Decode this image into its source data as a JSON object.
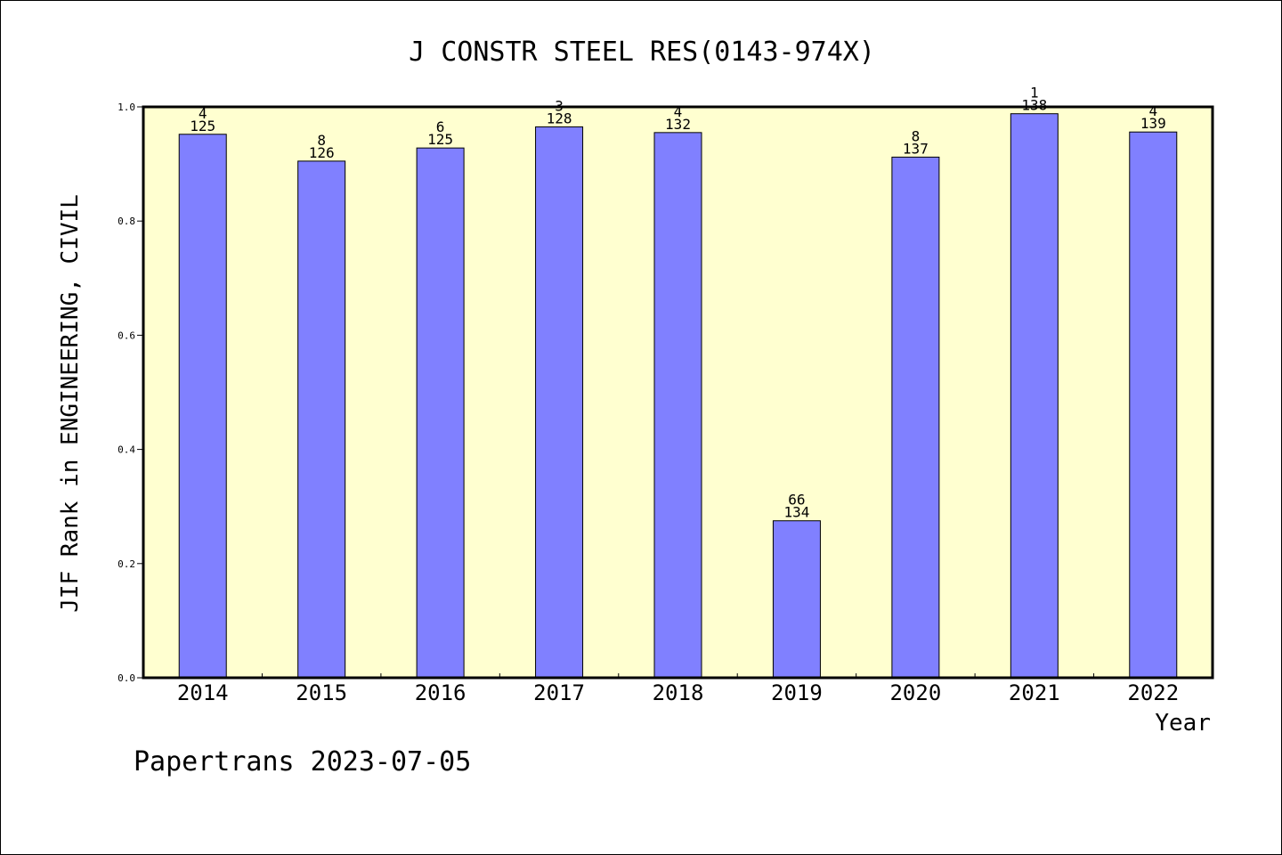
{
  "chart_data": {
    "type": "bar",
    "title": "J CONSTR STEEL RES(0143-974X)",
    "xlabel": "Year",
    "ylabel": "JIF Rank in ENGINEERING, CIVIL",
    "ylim": [
      0.0,
      1.0
    ],
    "yticks": [
      "0.0",
      "0.2",
      "0.4",
      "0.6",
      "0.8",
      "1.0"
    ],
    "grid": false,
    "categories": [
      "2014",
      "2015",
      "2016",
      "2017",
      "2018",
      "2019",
      "2020",
      "2021",
      "2022"
    ],
    "values": [
      0.952,
      0.905,
      0.928,
      0.965,
      0.955,
      0.275,
      0.912,
      0.988,
      0.956
    ],
    "rank": [
      "4",
      "8",
      "6",
      "3",
      "4",
      "66",
      "8",
      "1",
      "4"
    ],
    "total": [
      "125",
      "126",
      "125",
      "128",
      "132",
      "134",
      "137",
      "138",
      "139"
    ],
    "colors": {
      "bar_fill": "#8080ff",
      "plot_background": "#ffffd0",
      "axis": "#000000"
    }
  },
  "footer": {
    "note": "Papertrans 2023-07-05"
  }
}
